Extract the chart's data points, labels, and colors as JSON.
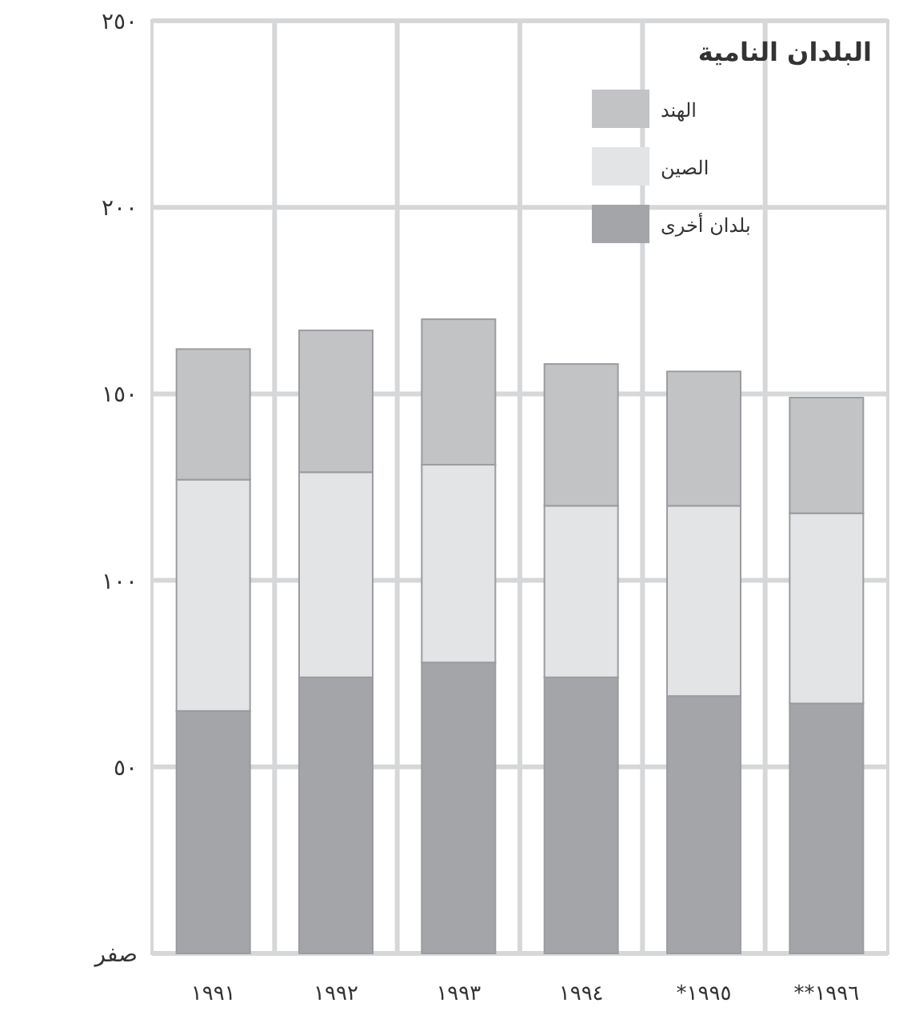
{
  "chart_data": {
    "type": "bar",
    "stacked": true,
    "legend_title": "البلدان النامية",
    "categories": [
      "١٩٩١",
      "١٩٩٢",
      "١٩٩٣",
      "١٩٩٤",
      "١٩٩٥*",
      "١٩٩٦**"
    ],
    "series": [
      {
        "name": "بلدان أخرى",
        "color": "#a3a5a8",
        "values": [
          65,
          74,
          78,
          74,
          69,
          67
        ]
      },
      {
        "name": "الصين",
        "color": "#e3e4e5",
        "values": [
          62,
          55,
          53,
          46,
          51,
          51
        ]
      },
      {
        "name": "الهند",
        "color": "#c2c3c5",
        "values": [
          35,
          38,
          39,
          38,
          36,
          31
        ]
      }
    ],
    "ylim": [
      0,
      250
    ],
    "yticks": [
      {
        "value": 0,
        "label": "صفر"
      },
      {
        "value": 50,
        "label": "٥٠"
      },
      {
        "value": 100,
        "label": "١٠٠"
      },
      {
        "value": 150,
        "label": "١٥٠"
      },
      {
        "value": 200,
        "label": "٢٠٠"
      },
      {
        "value": 250,
        "label": "٢٥٠"
      }
    ],
    "grid": true,
    "legend": "top right"
  }
}
